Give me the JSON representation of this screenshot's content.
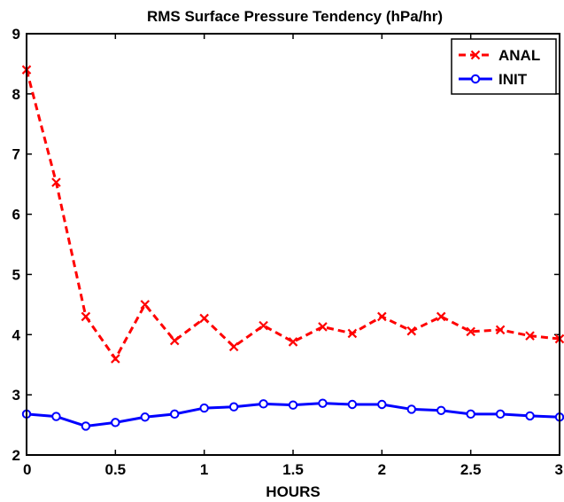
{
  "chart_data": {
    "type": "line",
    "title": "RMS Surface Pressure Tendency (hPa/hr)",
    "xlabel": "HOURS",
    "ylabel": "",
    "xlim": [
      0,
      3
    ],
    "ylim": [
      2,
      9
    ],
    "xticks": [
      0,
      0.5,
      1,
      1.5,
      2,
      2.5,
      3
    ],
    "xtick_labels": [
      "0",
      "0.5",
      "1",
      "1.5",
      "2",
      "2.5",
      "3"
    ],
    "yticks": [
      2,
      3,
      4,
      5,
      6,
      7,
      8,
      9
    ],
    "ytick_labels": [
      "2",
      "3",
      "4",
      "5",
      "6",
      "7",
      "8",
      "9"
    ],
    "grid": false,
    "legend_position": "top-right",
    "x": [
      0,
      0.1667,
      0.3333,
      0.5,
      0.6667,
      0.8333,
      1,
      1.1667,
      1.3333,
      1.5,
      1.6667,
      1.8333,
      2,
      2.1667,
      2.3333,
      2.5,
      2.6667,
      2.8333,
      3
    ],
    "series": [
      {
        "name": "ANAL",
        "color": "#ff0000",
        "line_style": "dashed",
        "marker": "x",
        "values": [
          8.4,
          6.53,
          4.3,
          3.6,
          4.5,
          3.9,
          4.27,
          3.8,
          4.15,
          3.88,
          4.13,
          4.02,
          4.3,
          4.06,
          4.3,
          4.05,
          4.08,
          3.98,
          3.93
        ]
      },
      {
        "name": "INIT",
        "color": "#0000ff",
        "line_style": "solid",
        "marker": "circle",
        "values": [
          2.68,
          2.64,
          2.48,
          2.54,
          2.63,
          2.68,
          2.78,
          2.8,
          2.85,
          2.83,
          2.86,
          2.84,
          2.84,
          2.76,
          2.74,
          2.68,
          2.68,
          2.65,
          2.63
        ]
      }
    ]
  }
}
